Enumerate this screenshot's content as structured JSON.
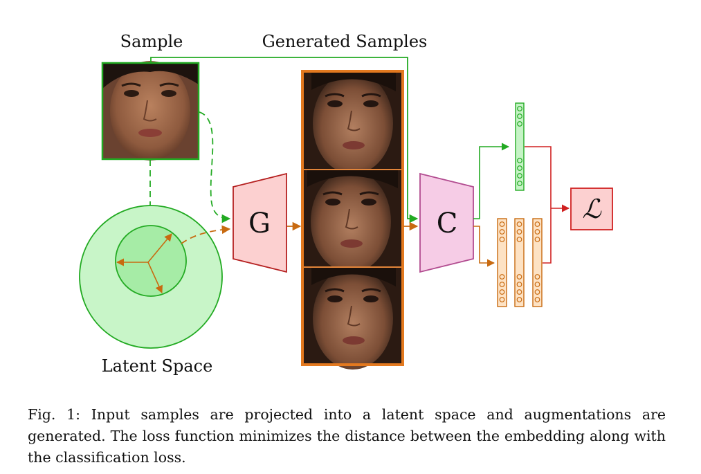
{
  "labels": {
    "sample": "Sample",
    "generated_samples": "Generated Samples",
    "latent_space": "Latent Space",
    "generator": "G",
    "classifier": "C",
    "loss": "ℒ"
  },
  "caption": "Fig. 1: Input samples are projected into a latent space and augmentations are generated. The loss function minimizes the distance between the embedding along with the classification loss.",
  "colors": {
    "green": "#22aa22",
    "orange": "#c86a10",
    "red": "#d02020",
    "generator_fill": "#fcd0d0",
    "classifier_fill": "#f6cce6",
    "latent_outer_fill": "#c8f5c8",
    "latent_inner_fill": "#a6eca6",
    "embedding_fill": "#fde2c4",
    "embedding_green_fill": "#c6f3c6"
  },
  "icons": {
    "sample_face": "face-photo",
    "generated_faces": "face-photo"
  }
}
